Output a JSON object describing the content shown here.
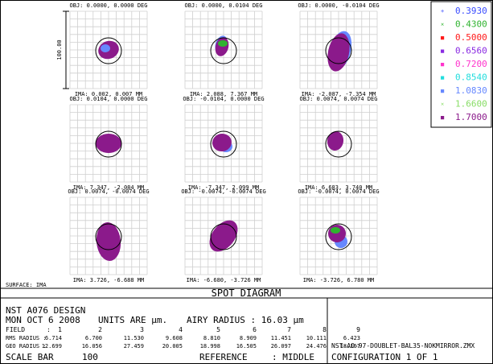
{
  "title": "SPOT DIAGRAM",
  "surface_label": "SURFACE: IMA",
  "scale_label": "100.00",
  "legend": [
    {
      "wavelength": "0.3930",
      "color": "#3a4cff",
      "marker": "+"
    },
    {
      "wavelength": "0.4300",
      "color": "#2fb32f",
      "marker": "×"
    },
    {
      "wavelength": "0.5000",
      "color": "#ff1a1a",
      "marker": "■"
    },
    {
      "wavelength": "0.6560",
      "color": "#8a2be2",
      "marker": "■"
    },
    {
      "wavelength": "0.7200",
      "color": "#ff33cc",
      "marker": "■"
    },
    {
      "wavelength": "0.8540",
      "color": "#22dddd",
      "marker": "■"
    },
    {
      "wavelength": "1.0830",
      "color": "#6688ff",
      "marker": "■"
    },
    {
      "wavelength": "1.6600",
      "color": "#88dd66",
      "marker": "×"
    },
    {
      "wavelength": "1.7000",
      "color": "#8b1a8b",
      "marker": "■"
    }
  ],
  "spots": [
    {
      "obj": "OBJ: 0.0000, 0.0000 DEG",
      "ima": "IMA: 0.002, 0.007 MM"
    },
    {
      "obj": "OBJ: 0.0000, 0.0104 DEG",
      "ima": "IMA: 2.088, 7.367 MM"
    },
    {
      "obj": "OBJ: 0.0000, -0.0104 DEG",
      "ima": "IMA: -2.087, -7.354 MM"
    },
    {
      "obj": "OBJ: 0.0104, 0.0000 DEG",
      "ima": "IMA: 7.347, -2.084 MM"
    },
    {
      "obj": "OBJ: -0.0104, 0.0000 DEG",
      "ima": "IMA: -7.347, 2.099 MM"
    },
    {
      "obj": "OBJ: 0.0074, 0.0074 DEG",
      "ima": "IMA: 6.683, 3.740 MM"
    },
    {
      "obj": "OBJ: 0.0074, -0.0074 DEG",
      "ima": "IMA: 3.726, -6.688 MM"
    },
    {
      "obj": "OBJ: -0.0074, -0.0074 DEG",
      "ima": "IMA: -6.680, -3.726 MM"
    },
    {
      "obj": "OBJ: -0.0074, 0.0074 DEG",
      "ima": "IMA: -3.726, 6.780 MM"
    }
  ],
  "info": {
    "design": "NST A076 DESIGN",
    "date": "MON OCT 6 2008",
    "units_label": "UNITS ARE µm.",
    "airy_label": "AIRY RADIUS : 16.03 µm",
    "field_label": "FIELD",
    "fields": [
      "1",
      "2",
      "3",
      "4",
      "5",
      "6",
      "7",
      "8",
      "9"
    ],
    "rms_label": "RMS RADIUS :",
    "rms": [
      "6.714",
      "6.700",
      "11.530",
      "9.608",
      "8.810",
      "8.909",
      "11.451",
      "10.111",
      "6.423"
    ],
    "geo_label": "GEO RADIUS :",
    "geo": [
      "12.699",
      "16.056",
      "27.459",
      "20.005",
      "18.998",
      "16.505",
      "26.097",
      "24.476",
      "18.167"
    ],
    "scale_bar_label": "SCALE BAR",
    "scale_bar_value": "100",
    "reference_label": "REFERENCE",
    "reference_value": ": MIDDLE",
    "file": "NST-AO-97-DOUBLET-BAL35-NOKMIRROR.ZMX",
    "config": "CONFIGURATION 1 OF 1"
  }
}
